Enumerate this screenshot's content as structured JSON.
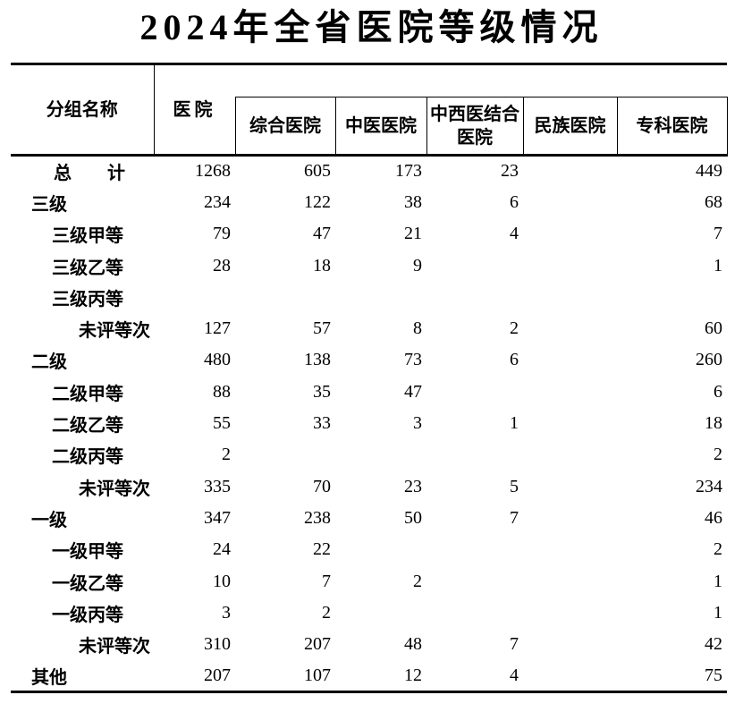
{
  "title": "2024年全省医院等级情况",
  "table": {
    "header": {
      "group_name": "分组名称",
      "hospital": "医院",
      "sub_columns": [
        "综合医院",
        "中医医院",
        "中西医结合医院",
        "民族医院",
        "专科医院"
      ]
    },
    "rows": [
      {
        "label": "总　　计",
        "indent": "total",
        "values": [
          "1268",
          "605",
          "173",
          "23",
          "",
          "449"
        ]
      },
      {
        "label": "三级",
        "indent": "0",
        "values": [
          "234",
          "122",
          "38",
          "6",
          "",
          "68"
        ]
      },
      {
        "label": "三级甲等",
        "indent": "1",
        "values": [
          "79",
          "47",
          "21",
          "4",
          "",
          "7"
        ]
      },
      {
        "label": "三级乙等",
        "indent": "1",
        "values": [
          "28",
          "18",
          "9",
          "",
          "",
          "1"
        ]
      },
      {
        "label": "三级丙等",
        "indent": "1",
        "values": [
          "",
          "",
          "",
          "",
          "",
          ""
        ]
      },
      {
        "label": "未评等次",
        "indent": "2",
        "values": [
          "127",
          "57",
          "8",
          "2",
          "",
          "60"
        ]
      },
      {
        "label": "二级",
        "indent": "0",
        "values": [
          "480",
          "138",
          "73",
          "6",
          "",
          "260"
        ]
      },
      {
        "label": "二级甲等",
        "indent": "1",
        "values": [
          "88",
          "35",
          "47",
          "",
          "",
          "6"
        ]
      },
      {
        "label": "二级乙等",
        "indent": "1",
        "values": [
          "55",
          "33",
          "3",
          "1",
          "",
          "18"
        ]
      },
      {
        "label": "二级丙等",
        "indent": "1",
        "values": [
          "2",
          "",
          "",
          "",
          "",
          "2"
        ]
      },
      {
        "label": "未评等次",
        "indent": "2",
        "values": [
          "335",
          "70",
          "23",
          "5",
          "",
          "234"
        ]
      },
      {
        "label": "一级",
        "indent": "0",
        "values": [
          "347",
          "238",
          "50",
          "7",
          "",
          "46"
        ]
      },
      {
        "label": "一级甲等",
        "indent": "1",
        "values": [
          "24",
          "22",
          "",
          "",
          "",
          "2"
        ]
      },
      {
        "label": "一级乙等",
        "indent": "1",
        "values": [
          "10",
          "7",
          "2",
          "",
          "",
          "1"
        ]
      },
      {
        "label": "一级丙等",
        "indent": "1",
        "values": [
          "3",
          "2",
          "",
          "",
          "",
          "1"
        ]
      },
      {
        "label": "未评等次",
        "indent": "2",
        "values": [
          "310",
          "207",
          "48",
          "7",
          "",
          "42"
        ]
      },
      {
        "label": "其他",
        "indent": "0",
        "values": [
          "207",
          "107",
          "12",
          "4",
          "",
          "75"
        ]
      }
    ]
  }
}
